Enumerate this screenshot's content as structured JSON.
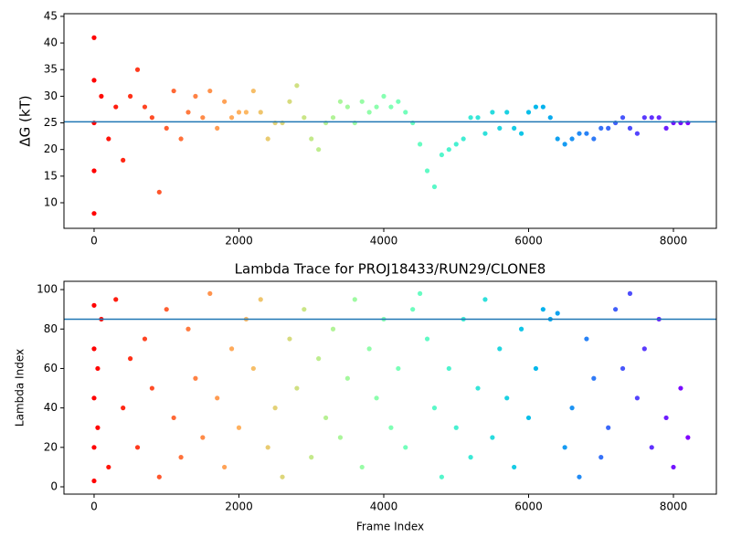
{
  "chart_data": [
    {
      "type": "scatter",
      "ylabel": "ΔG (kT)",
      "x": [
        0,
        0,
        0,
        0,
        0,
        100,
        200,
        300,
        400,
        500,
        600,
        700,
        800,
        900,
        1000,
        1100,
        1200,
        1300,
        1400,
        1500,
        1600,
        1700,
        1800,
        1900,
        2000,
        2100,
        2200,
        2300,
        2400,
        2500,
        2600,
        2700,
        2800,
        2900,
        3000,
        3100,
        3200,
        3300,
        3400,
        3500,
        3600,
        3700,
        3800,
        3900,
        4000,
        4100,
        4200,
        4300,
        4400,
        4500,
        4600,
        4700,
        4800,
        4900,
        5000,
        5100,
        5200,
        5300,
        5400,
        5500,
        5600,
        5700,
        5800,
        5900,
        6000,
        6100,
        6200,
        6300,
        6400,
        6500,
        6600,
        6700,
        6800,
        6900,
        7000,
        7100,
        7200,
        7300,
        7400,
        7500,
        7600,
        7700,
        7800,
        7900,
        8000,
        8100,
        8200
      ],
      "values": [
        8,
        16,
        25,
        33,
        41,
        30,
        22,
        28,
        18,
        30,
        35,
        28,
        26,
        12,
        24,
        31,
        22,
        27,
        30,
        26,
        31,
        24,
        29,
        26,
        27,
        27,
        31,
        27,
        22,
        25,
        25,
        29,
        32,
        26,
        22,
        20,
        25,
        26,
        29,
        28,
        25,
        29,
        27,
        28,
        30,
        28,
        29,
        27,
        25,
        21,
        16,
        13,
        19,
        20,
        21,
        22,
        26,
        26,
        23,
        27,
        24,
        27,
        24,
        23,
        27,
        28,
        28,
        26,
        22,
        21,
        22,
        23,
        23,
        22,
        24,
        24,
        25,
        26,
        24,
        23,
        26,
        26,
        26,
        24,
        25,
        25,
        25
      ],
      "colormap": "rainbow_r",
      "hline": 25.2,
      "hline_color": "#1f77b4",
      "xlim": [
        -416,
        8593
      ],
      "xticks": [
        0,
        2000,
        4000,
        6000,
        8000
      ],
      "ylim": [
        5.2,
        45.5
      ],
      "yticks": [
        10,
        15,
        20,
        25,
        30,
        35,
        40,
        45
      ]
    },
    {
      "type": "scatter",
      "title": "Lambda Trace for PROJ18433/RUN29/CLONE8",
      "xlabel": "Frame Index",
      "ylabel": "Lambda Index",
      "x": [
        0,
        0,
        0,
        0,
        0,
        50,
        50,
        100,
        200,
        300,
        400,
        500,
        600,
        700,
        800,
        900,
        1000,
        1100,
        1200,
        1300,
        1400,
        1500,
        1600,
        1700,
        1800,
        1900,
        2000,
        2100,
        2200,
        2300,
        2400,
        2500,
        2600,
        2700,
        2800,
        2900,
        3000,
        3100,
        3200,
        3300,
        3400,
        3500,
        3600,
        3700,
        3800,
        3900,
        4000,
        4100,
        4200,
        4300,
        4400,
        4500,
        4600,
        4700,
        4800,
        4900,
        5000,
        5100,
        5200,
        5300,
        5400,
        5500,
        5600,
        5700,
        5800,
        5900,
        6000,
        6100,
        6200,
        6300,
        6400,
        6500,
        6600,
        6700,
        6800,
        6900,
        7000,
        7100,
        7200,
        7300,
        7400,
        7500,
        7600,
        7700,
        7800,
        7900,
        8000,
        8100,
        8200
      ],
      "values": [
        3,
        20,
        45,
        70,
        92,
        60,
        30,
        85,
        10,
        95,
        40,
        65,
        20,
        75,
        50,
        5,
        90,
        35,
        15,
        80,
        55,
        25,
        98,
        45,
        10,
        70,
        30,
        85,
        60,
        95,
        20,
        40,
        5,
        75,
        50,
        90,
        15,
        65,
        35,
        80,
        25,
        55,
        95,
        10,
        70,
        45,
        85,
        30,
        60,
        20,
        90,
        98,
        75,
        40,
        5,
        60,
        30,
        85,
        15,
        50,
        95,
        25,
        70,
        45,
        10,
        80,
        35,
        60,
        90,
        85,
        88,
        20,
        40,
        5,
        75,
        55,
        15,
        30,
        90,
        60,
        98,
        45,
        70,
        20,
        85,
        35,
        10,
        50,
        25
      ],
      "colormap": "rainbow_r",
      "hline": 85,
      "hline_color": "#1f77b4",
      "xlim": [
        -416,
        8593
      ],
      "xticks": [
        0,
        2000,
        4000,
        6000,
        8000
      ],
      "ylim": [
        -3.7,
        104.2
      ],
      "yticks": [
        0,
        20,
        40,
        60,
        80,
        100
      ]
    }
  ]
}
